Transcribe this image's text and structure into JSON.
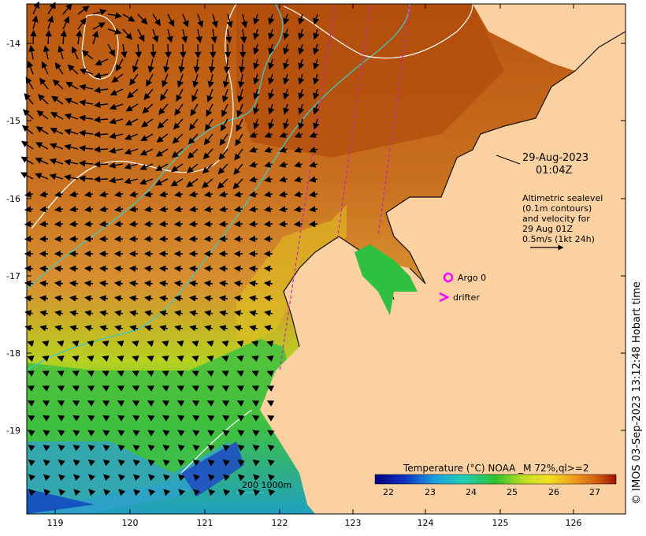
{
  "map": {
    "date_line1": "29-Aug-2023",
    "date_line2": "01:04Z",
    "info_lines": [
      "Altimetric sealevel",
      "(0.1m contours)",
      "and velocity for",
      "29 Aug 01Z",
      "0.5m/s (1kt 24h)"
    ],
    "legend_argo": "Argo 0",
    "legend_drifter": "drifter",
    "scale_label": "200  1000m",
    "colorbar_title": "Temperature (°C) NOAA _M 72%,ql>=2",
    "colorbar_ticks": [
      "22",
      "23",
      "24",
      "25",
      "26",
      "27"
    ],
    "credit": "© IMOS 03-Sep-2023 13:12:48 Hobart time",
    "x_ticks": [
      "119",
      "120",
      "121",
      "122",
      "123",
      "124",
      "125",
      "126"
    ],
    "y_ticks": [
      "-14",
      "-15",
      "-16",
      "-17",
      "-18",
      "-19"
    ],
    "colors": {
      "land": "#fbd1a2",
      "warm": "#c8641a",
      "isobath": "#40c8c8",
      "track": "#d020b0",
      "argo": "#ff00ff"
    }
  }
}
